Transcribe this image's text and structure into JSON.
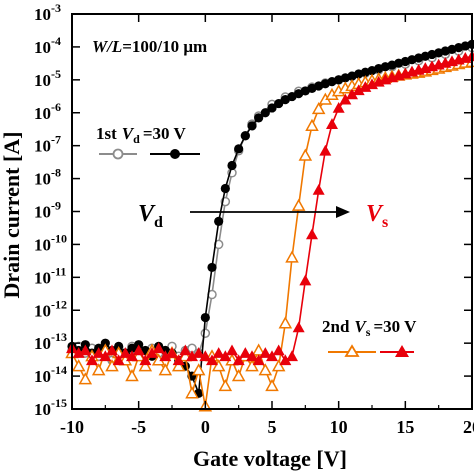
{
  "chart_data": {
    "type": "scatter",
    "xlabel": "Gate voltage [V]",
    "ylabel": "Drain current [A]",
    "xlim": [
      -10,
      20
    ],
    "ylim": [
      1e-15,
      0.001
    ],
    "yscale": "log",
    "x_ticks": [
      -10,
      -5,
      0,
      5,
      10,
      15,
      20
    ],
    "x_tick_labels": [
      "-10",
      "-5",
      "0",
      "5",
      "10",
      "15",
      "20"
    ],
    "y_tick_exponents": [
      -15,
      -14,
      -13,
      -12,
      -11,
      -10,
      -9,
      -8,
      -7,
      -6,
      -5,
      -4,
      -3
    ],
    "y_tick_base": "10",
    "grid": false,
    "annotations": {
      "geometry_prefix": "W/L",
      "geometry_value": "=100/10 μm",
      "first_prefix": "1st",
      "first_var": "V",
      "first_sub": "d",
      "first_value": "=30 V",
      "second_prefix": "2nd",
      "second_var": "V",
      "second_sub": "s",
      "second_value": "=30 V",
      "arrow_from_var": "V",
      "arrow_from_sub": "d",
      "arrow_to_var": "V",
      "arrow_to_sub": "s"
    },
    "series": [
      {
        "name": "1st Vd=30 V (open)",
        "color": "#8c8c8c",
        "marker": "circle-open",
        "x": [
          -10,
          -9.5,
          -9,
          -8.5,
          -8,
          -7.5,
          -7,
          -6.5,
          -6,
          -5.5,
          -5,
          -4.5,
          -4,
          -3.5,
          -3,
          -2.5,
          -2,
          -1.5,
          -1,
          -0.5,
          0,
          0.5,
          1,
          1.5,
          2,
          2.5,
          3,
          3.5,
          4,
          5,
          6,
          7,
          8,
          9,
          10,
          11,
          12,
          13,
          14,
          15,
          16,
          17,
          18,
          19,
          20
        ],
        "y": [
          6e-14,
          8e-14,
          5e-14,
          7e-14,
          4e-14,
          6e-14,
          3e-14,
          7e-14,
          5e-14,
          8e-14,
          6e-14,
          4e-14,
          7e-14,
          5e-14,
          6e-14,
          8e-14,
          4e-14,
          6e-14,
          7e-14,
          5e-14,
          2e-13,
          3e-12,
          1e-10,
          2e-09,
          1.5e-08,
          7e-08,
          2e-07,
          4.5e-07,
          8e-07,
          1.8e-06,
          3e-06,
          4.5e-06,
          6e-06,
          8e-06,
          1e-05,
          1.3e-05,
          1.6e-05,
          2e-05,
          2.5e-05,
          3e-05,
          3.8e-05,
          4.7e-05,
          6e-05,
          7.5e-05,
          9.5e-05
        ]
      },
      {
        "name": "1st Vd=30 V (filled)",
        "color": "#000000",
        "marker": "circle-filled",
        "x": [
          -10,
          -9.5,
          -9,
          -8.5,
          -8,
          -7.5,
          -7,
          -6.5,
          -6,
          -5.5,
          -5,
          -4.5,
          -4,
          -3.5,
          -3,
          -2.5,
          -2,
          -1.5,
          -1,
          -0.5,
          0,
          0.5,
          1,
          1.5,
          2,
          2.5,
          3,
          3.5,
          4,
          4.5,
          5,
          5.5,
          6,
          6.5,
          7,
          7.5,
          8,
          8.5,
          9,
          9.5,
          10,
          10.5,
          11,
          11.5,
          12,
          12.5,
          13,
          13.5,
          14,
          14.5,
          15,
          15.5,
          16,
          16.5,
          17,
          17.5,
          18,
          18.5,
          19,
          19.5,
          20
        ],
        "y": [
          8e-14,
          6e-14,
          9e-14,
          5e-14,
          7e-14,
          1e-13,
          6e-14,
          8e-14,
          5e-14,
          7e-14,
          9e-14,
          6e-14,
          4e-14,
          8e-14,
          6e-14,
          5e-14,
          3e-14,
          2e-14,
          1e-14,
          3e-15,
          6e-13,
          2e-11,
          5e-10,
          5e-09,
          2.5e-08,
          8e-08,
          2e-07,
          4e-07,
          7e-07,
          1e-06,
          1.4e-06,
          1.9e-06,
          2.5e-06,
          3.1e-06,
          3.8e-06,
          4.6e-06,
          5.5e-06,
          6.5e-06,
          7.6e-06,
          8.8e-06,
          1e-05,
          1.15e-05,
          1.3e-05,
          1.5e-05,
          1.7e-05,
          1.9e-05,
          2.2e-05,
          2.5e-05,
          2.8e-05,
          3.2e-05,
          3.6e-05,
          4.1e-05,
          4.6e-05,
          5.2e-05,
          5.9e-05,
          6.6e-05,
          7.5e-05,
          8.4e-05,
          9.5e-05,
          0.000107,
          0.00012
        ]
      },
      {
        "name": "2nd Vs=30 V (open)",
        "color": "#f07800",
        "marker": "triangle-open",
        "x": [
          -10,
          -9.5,
          -9,
          -8.5,
          -8,
          -7.5,
          -7,
          -6.5,
          -6,
          -5.5,
          -5,
          -4.5,
          -4,
          -3.5,
          -3,
          -2.5,
          -2,
          -1.5,
          -1,
          -0.5,
          0,
          0.5,
          1,
          1.5,
          2,
          2.5,
          3,
          3.5,
          4,
          4.5,
          5,
          5.5,
          6,
          6.5,
          7,
          7.5,
          8,
          8.5,
          9,
          9.5,
          10,
          10.5,
          11,
          11.5,
          12,
          12.5,
          13,
          13.5,
          14,
          14.5,
          15,
          15.5,
          16,
          16.5,
          17,
          17.5,
          18,
          18.5,
          19,
          19.5,
          20
        ],
        "y": [
          5e-14,
          2e-14,
          8e-15,
          4e-14,
          1.5e-14,
          6e-14,
          2e-14,
          5e-14,
          3e-14,
          1e-14,
          4e-14,
          2e-14,
          6e-14,
          3e-14,
          1.5e-14,
          5e-14,
          2e-14,
          4e-14,
          3e-15,
          1.5e-14,
          1.2e-15,
          4e-14,
          2e-14,
          5e-15,
          3e-14,
          1e-14,
          4e-14,
          2e-14,
          6e-14,
          1.5e-14,
          5e-15,
          2e-14,
          4e-13,
          4e-11,
          1.5e-09,
          5e-08,
          4e-07,
          1.3e-06,
          2.5e-06,
          3.5e-06,
          4.5e-06,
          5.5e-06,
          6.5e-06,
          7.5e-06,
          8.5e-06,
          9.5e-06,
          1.05e-05,
          1.15e-05,
          1.25e-05,
          1.35e-05,
          1.45e-05,
          1.55e-05,
          1.65e-05,
          1.8e-05,
          2e-05,
          2.2e-05,
          2.45e-05,
          2.7e-05,
          3e-05,
          3.3e-05,
          3.5e-05
        ]
      },
      {
        "name": "2nd Vs=30 V (filled)",
        "color": "#e8000b",
        "marker": "triangle-filled",
        "x": [
          -10,
          -9.5,
          -9,
          -8.5,
          -8,
          -7.5,
          -7,
          -6.5,
          -6,
          -5.5,
          -5,
          -4.5,
          -4,
          -3.5,
          -3,
          -2.5,
          -2,
          -1.5,
          -1,
          -0.5,
          0,
          0.5,
          1,
          1.5,
          2,
          2.5,
          3,
          3.5,
          4,
          4.5,
          5,
          5.5,
          6,
          6.5,
          7,
          7.5,
          8,
          8.5,
          9,
          9.5,
          10,
          10.5,
          11,
          11.5,
          12,
          12.5,
          13,
          13.5,
          14,
          14.5,
          15,
          15.5,
          16,
          16.5,
          17,
          17.5,
          18,
          18.5,
          19,
          19.5,
          20
        ],
        "y": [
          7e-14,
          5e-14,
          6e-14,
          3e-14,
          5e-14,
          4e-14,
          6e-14,
          3e-14,
          5e-14,
          4e-14,
          6e-14,
          3e-14,
          5e-14,
          7e-14,
          4e-14,
          5e-14,
          3e-14,
          6e-14,
          4e-14,
          5e-14,
          4e-14,
          3e-14,
          5e-14,
          4e-14,
          6e-14,
          3e-14,
          5e-14,
          4e-14,
          3e-14,
          5e-14,
          4e-14,
          6e-14,
          3e-14,
          4e-14,
          3e-13,
          8e-12,
          2e-10,
          4.5e-09,
          7e-08,
          4.5e-07,
          1.4e-06,
          2.5e-06,
          3.6e-06,
          4.8e-06,
          6e-06,
          7.3e-06,
          8.7e-06,
          1.02e-05,
          1.18e-05,
          1.36e-05,
          1.55e-05,
          1.77e-05,
          2e-05,
          2.26e-05,
          2.55e-05,
          2.88e-05,
          3.25e-05,
          3.65e-05,
          4.1e-05,
          4.6e-05,
          5.2e-05
        ]
      }
    ]
  }
}
